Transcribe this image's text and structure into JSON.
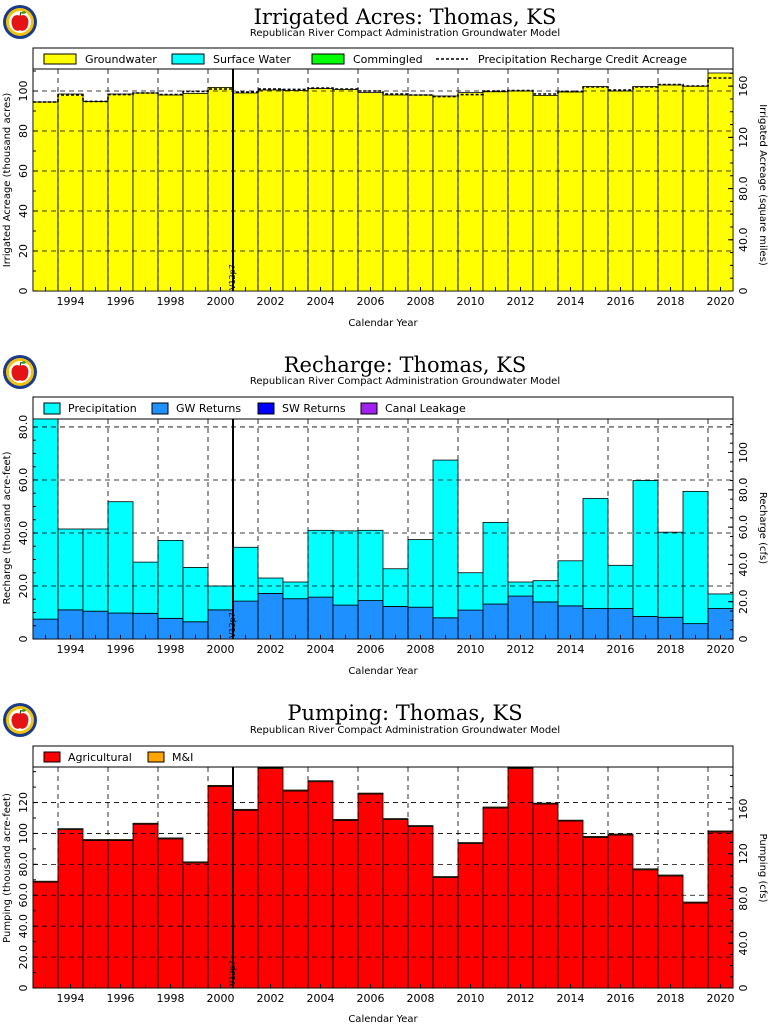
{
  "colors": {
    "groundwater": "#ffff00",
    "surface_water": "#00ffff",
    "commingled": "#00ff00",
    "precipitation": "#00ffff",
    "gw_returns": "#1e90ff",
    "sw_returns": "#0000ff",
    "canal_leakage": "#a020f0",
    "agricultural": "#ff0000",
    "mi": "#ffa500",
    "logo_apple": "#e41414",
    "logo_ring": "#f4c20d",
    "logo_border": "#1a3a8a"
  },
  "icons": {
    "logo": "apple-seal-icon"
  },
  "charts": [
    {
      "title": "Irrigated Acres: Thomas, KS",
      "subtitle": "Republican River Compact Administration Groundwater Model",
      "xlabel": "Calendar Year",
      "ylabel": "Irrigated Acreage (thousand acres)",
      "y2label": "Irrigated Acreage (square miles)",
      "vline_label": "V12p7",
      "legend": [
        {
          "label": "Groundwater",
          "key": "groundwater",
          "kind": "box"
        },
        {
          "label": "Surface Water",
          "key": "surface_water",
          "kind": "box"
        },
        {
          "label": "Commingled",
          "key": "commingled",
          "kind": "box"
        },
        {
          "label": "Precipitation Recharge Credit Acreage",
          "key": "dashed",
          "kind": "dash"
        }
      ],
      "x_ticks": [
        "1994",
        "1996",
        "1998",
        "2000",
        "2002",
        "2004",
        "2006",
        "2008",
        "2010",
        "2012",
        "2014",
        "2016",
        "2018",
        "2020"
      ],
      "y_ticks": [
        "0",
        "20",
        "40",
        "60",
        "80",
        "100"
      ],
      "y2_ticks": [
        "0",
        "40.0",
        "80.0",
        "120",
        "160"
      ]
    },
    {
      "title": "Recharge: Thomas, KS",
      "subtitle": "Republican River Compact Administration Groundwater Model",
      "xlabel": "Calendar Year",
      "ylabel": "Recharge (thousand acre-feet)",
      "y2label": "Recharge (cfs)",
      "vline_label": "V12p7",
      "legend": [
        {
          "label": "Precipitation",
          "key": "precipitation",
          "kind": "box"
        },
        {
          "label": "GW Returns",
          "key": "gw_returns",
          "kind": "box"
        },
        {
          "label": "SW Returns",
          "key": "sw_returns",
          "kind": "box"
        },
        {
          "label": "Canal Leakage",
          "key": "canal_leakage",
          "kind": "box"
        }
      ],
      "x_ticks": [
        "1994",
        "1996",
        "1998",
        "2000",
        "2002",
        "2004",
        "2006",
        "2008",
        "2010",
        "2012",
        "2014",
        "2016",
        "2018",
        "2020"
      ],
      "y_ticks": [
        "0",
        "20.0",
        "40.0",
        "60.0",
        "80.0"
      ],
      "y2_ticks": [
        "0",
        "20.0",
        "40.0",
        "60.0",
        "80.0",
        "100"
      ]
    },
    {
      "title": "Pumping: Thomas, KS",
      "subtitle": "Republican River Compact Administration Groundwater Model",
      "xlabel": "Calendar Year",
      "ylabel": "Pumping (thousand acre-feet)",
      "y2label": "Pumping (cfs)",
      "vline_label": "V12p7",
      "legend": [
        {
          "label": "Agricultural",
          "key": "agricultural",
          "kind": "box"
        },
        {
          "label": "M&I",
          "key": "mi",
          "kind": "box"
        }
      ],
      "x_ticks": [
        "1994",
        "1996",
        "1998",
        "2000",
        "2002",
        "2004",
        "2006",
        "2008",
        "2010",
        "2012",
        "2014",
        "2016",
        "2018",
        "2020"
      ],
      "y_ticks": [
        "0",
        "20.0",
        "40.0",
        "60.0",
        "80.0",
        "100",
        "120"
      ],
      "y2_ticks": [
        "0",
        "40.0",
        "80.0",
        "120",
        "160"
      ]
    }
  ],
  "chart_data": [
    {
      "type": "bar",
      "stacked": true,
      "title": "Irrigated Acres: Thomas, KS",
      "xlabel": "Calendar Year",
      "ylabel": "Irrigated Acreage (thousand acres)",
      "y2label": "Irrigated Acreage (square miles)",
      "x": [
        1993,
        1994,
        1995,
        1996,
        1997,
        1998,
        1999,
        2000,
        2001,
        2002,
        2003,
        2004,
        2005,
        2006,
        2007,
        2008,
        2009,
        2010,
        2011,
        2012,
        2013,
        2014,
        2015,
        2016,
        2017,
        2018,
        2019,
        2020
      ],
      "ylim": [
        0,
        111
      ],
      "y2lim": [
        0,
        173.4
      ],
      "vline_x": 2000.5,
      "series": [
        {
          "name": "Groundwater",
          "color_key": "groundwater",
          "values": [
            94.5,
            98.5,
            94.8,
            98.5,
            99.0,
            98.0,
            98.8,
            101.8,
            99.0,
            100.5,
            100.2,
            101.2,
            100.8,
            99.2,
            98.0,
            98.0,
            97.5,
            99.2,
            99.6,
            100.0,
            97.8,
            99.5,
            102.2,
            100.0,
            102.2,
            103.0,
            102.4,
            109.0
          ]
        },
        {
          "name": "Surface Water",
          "color_key": "surface_water",
          "values": [
            0,
            0,
            0,
            0,
            0,
            0,
            0,
            0,
            0,
            0,
            0,
            0,
            0,
            0,
            0,
            0,
            0,
            0,
            0,
            0,
            0,
            0,
            0,
            0,
            0,
            0,
            0,
            0
          ]
        },
        {
          "name": "Commingled",
          "color_key": "commingled",
          "values": [
            0,
            0,
            0,
            0,
            0,
            0,
            0,
            0,
            0,
            0,
            0,
            0,
            0,
            0,
            0,
            0,
            0,
            0,
            0,
            0,
            0,
            0,
            0,
            0,
            0,
            0,
            0,
            0
          ]
        }
      ],
      "line": {
        "name": "Precipitation Recharge Credit Acreage",
        "style": "dashed",
        "values": [
          94.5,
          98.0,
          94.8,
          98.2,
          99.0,
          98.2,
          99.8,
          101.0,
          99.5,
          101.0,
          100.8,
          101.5,
          101.0,
          100.0,
          98.5,
          98.0,
          97.2,
          98.2,
          100.0,
          100.2,
          98.5,
          99.8,
          102.0,
          100.5,
          102.0,
          103.2,
          102.5,
          106.5
        ]
      }
    },
    {
      "type": "bar",
      "stacked": true,
      "title": "Recharge: Thomas, KS",
      "xlabel": "Calendar Year",
      "ylabel": "Recharge (thousand acre-feet)",
      "y2label": "Recharge (cfs)",
      "x": [
        1993,
        1994,
        1995,
        1996,
        1997,
        1998,
        1999,
        2000,
        2001,
        2002,
        2003,
        2004,
        2005,
        2006,
        2007,
        2008,
        2009,
        2010,
        2011,
        2012,
        2013,
        2014,
        2015,
        2016,
        2017,
        2018,
        2019,
        2020
      ],
      "ylim": [
        0,
        83
      ],
      "y2lim": [
        0,
        118
      ],
      "vline_x": 2000.5,
      "series": [
        {
          "name": "GW Returns",
          "color_key": "gw_returns",
          "values": [
            7.5,
            11.0,
            10.5,
            9.8,
            9.7,
            7.8,
            6.5,
            11.0,
            14.3,
            17.2,
            15.2,
            15.8,
            12.8,
            14.5,
            12.3,
            12.0,
            8.0,
            10.9,
            13.2,
            16.2,
            14.0,
            12.5,
            11.5,
            11.5,
            8.5,
            8.2,
            5.8,
            11.5
          ]
        },
        {
          "name": "Precipitation",
          "color_key": "precipitation",
          "values": [
            75.5,
            30.5,
            31.0,
            42.0,
            19.3,
            29.4,
            20.5,
            9.0,
            20.3,
            5.8,
            6.3,
            25.2,
            28.0,
            26.5,
            14.2,
            25.5,
            59.5,
            14.1,
            30.8,
            5.3,
            8.0,
            17.0,
            41.5,
            16.3,
            51.3,
            32.1,
            49.9,
            5.5
          ]
        },
        {
          "name": "SW Returns",
          "color_key": "sw_returns",
          "values": [
            0,
            0,
            0,
            0,
            0,
            0,
            0,
            0,
            0,
            0,
            0,
            0,
            0,
            0,
            0,
            0,
            0,
            0,
            0,
            0,
            0,
            0,
            0,
            0,
            0,
            0,
            0,
            0
          ]
        },
        {
          "name": "Canal Leakage",
          "color_key": "canal_leakage",
          "values": [
            0,
            0,
            0,
            0,
            0,
            0,
            0,
            0,
            0,
            0,
            0,
            0,
            0,
            0,
            0,
            0,
            0,
            0,
            0,
            0,
            0,
            0,
            0,
            0,
            0,
            0,
            0,
            0
          ]
        }
      ]
    },
    {
      "type": "bar",
      "stacked": true,
      "title": "Pumping: Thomas, KS",
      "xlabel": "Calendar Year",
      "ylabel": "Pumping (thousand acre-feet)",
      "y2label": "Pumping (cfs)",
      "x": [
        1993,
        1994,
        1995,
        1996,
        1997,
        1998,
        1999,
        2000,
        2001,
        2002,
        2003,
        2004,
        2005,
        2006,
        2007,
        2008,
        2009,
        2010,
        2011,
        2012,
        2013,
        2014,
        2015,
        2016,
        2017,
        2018,
        2019,
        2020
      ],
      "ylim": [
        0,
        143
      ],
      "y2lim": [
        0,
        197.5
      ],
      "vline_x": 2000.5,
      "series": [
        {
          "name": "Agricultural",
          "color_key": "agricultural",
          "values": [
            68.5,
            102.5,
            95.5,
            95.5,
            106.0,
            96.5,
            81.0,
            130.5,
            115.0,
            142.0,
            127.5,
            133.5,
            108.5,
            125.5,
            109.0,
            104.5,
            71.5,
            93.5,
            116.5,
            142.0,
            119.0,
            108.0,
            97.5,
            99.0,
            76.5,
            72.5,
            55.0,
            101.0
          ]
        },
        {
          "name": "M&I",
          "color_key": "mi",
          "values": [
            0.6,
            0.6,
            0.6,
            0.6,
            0.6,
            0.6,
            0.6,
            0.6,
            0.6,
            0.6,
            0.6,
            0.6,
            0.6,
            0.6,
            0.6,
            0.6,
            0.6,
            0.6,
            0.6,
            0.6,
            0.6,
            0.6,
            0.6,
            0.6,
            0.6,
            0.6,
            0.6,
            0.6
          ]
        }
      ]
    }
  ]
}
